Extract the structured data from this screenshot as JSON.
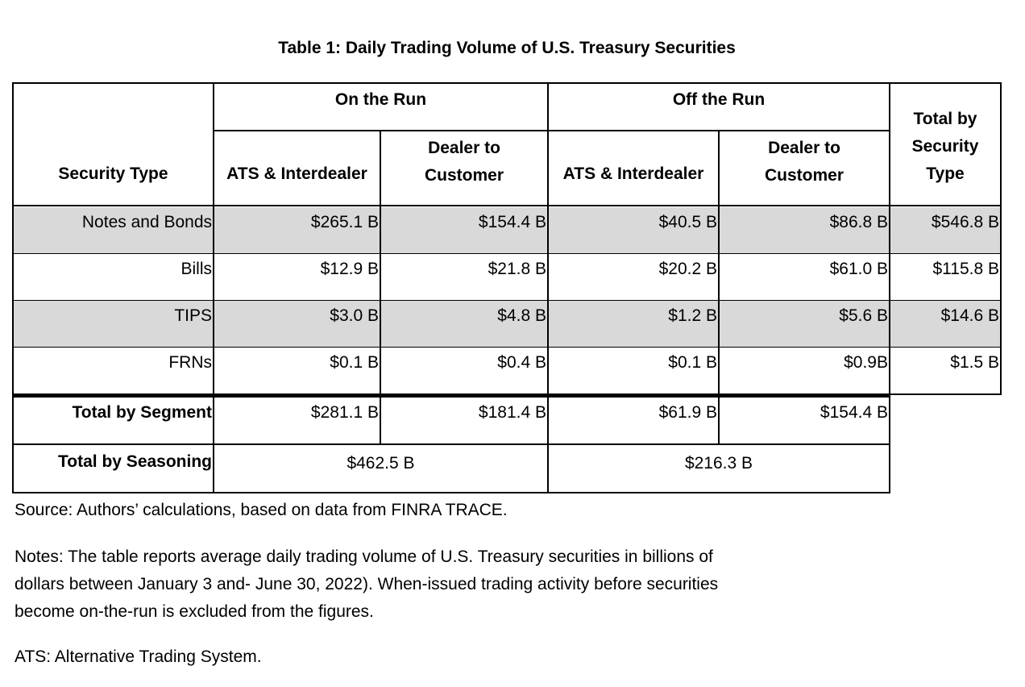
{
  "title": "Table 1: Daily Trading Volume of U.S. Treasury Securities",
  "headers": {
    "security_type": "Security Type",
    "on_the_run": "On the Run",
    "off_the_run": "Off the Run",
    "ats_interdealer": "ATS & Interdealer",
    "dealer_to_customer": "Dealer to Customer",
    "total_by_security_type": "Total by Security Type"
  },
  "rows": [
    {
      "label": "Notes and Bonds",
      "on_ats": "$265.1 B",
      "on_dtc": "$154.4 B",
      "off_ats": "$40.5 B",
      "off_dtc": "$86.8 B",
      "total": "$546.8 B"
    },
    {
      "label": "Bills",
      "on_ats": "$12.9 B",
      "on_dtc": "$21.8 B",
      "off_ats": "$20.2 B",
      "off_dtc": "$61.0 B",
      "total": "$115.8 B"
    },
    {
      "label": "TIPS",
      "on_ats": "$3.0 B",
      "on_dtc": "$4.8 B",
      "off_ats": "$1.2 B",
      "off_dtc": "$5.6 B",
      "total": "$14.6 B"
    },
    {
      "label": "FRNs",
      "on_ats": "$0.1 B",
      "on_dtc": "$0.4 B",
      "off_ats": "$0.1 B",
      "off_dtc": "$0.9B",
      "total": "$1.5 B"
    }
  ],
  "total_segment": {
    "label": "Total by Segment",
    "on_ats": "$281.1 B",
    "on_dtc": "$181.4 B",
    "off_ats": "$61.9 B",
    "off_dtc": "$154.4 B"
  },
  "total_seasoning": {
    "label": "Total by Seasoning",
    "on_run": "$462.5 B",
    "off_run": "$216.3 B"
  },
  "notes": {
    "source": "Source: Authors’ calculations, based on data from FINRA TRACE.",
    "notes_line1": "Notes: The table reports average daily trading volume of U.S. Treasury securities in billions of",
    "notes_line2": "dollars between January 3 and- June 30, 2022). When-issued trading activity before securities",
    "notes_line3": "become on-the-run is excluded from the figures.",
    "ats": "ATS: Alternative Trading System."
  }
}
